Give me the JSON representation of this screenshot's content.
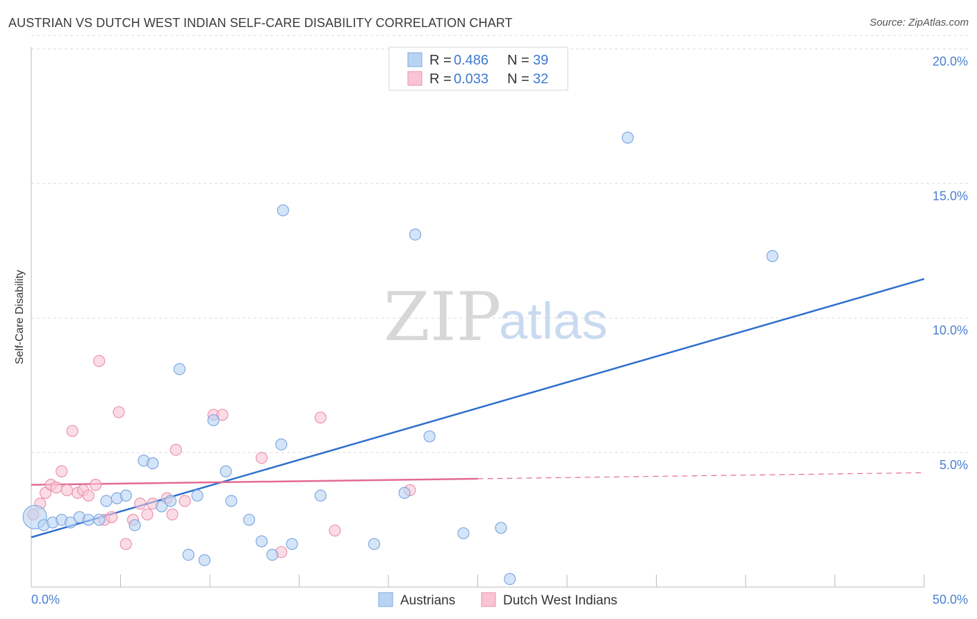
{
  "header": {
    "title": "AUSTRIAN VS DUTCH WEST INDIAN SELF-CARE DISABILITY CORRELATION CHART",
    "source": "Source: ZipAtlas.com"
  },
  "watermark": {
    "zip": "ZIP",
    "atlas": "atlas"
  },
  "colors": {
    "blue_fill": "#b9d3f3",
    "blue_stroke": "#7ea8e0",
    "blue_line": "#2c6fce",
    "pink_fill": "#f9c4d3",
    "pink_stroke": "#eb93ad",
    "pink_line": "#e36a94",
    "grid": "#dcdcdc",
    "tick_text": "#4a7fcf"
  },
  "legend": {
    "rows": [
      {
        "r_label": "R =",
        "r_value": "0.486",
        "n_label": "N =",
        "n_value": "39"
      },
      {
        "r_label": "R =",
        "r_value": "0.033",
        "n_label": "N =",
        "n_value": "32"
      }
    ]
  },
  "chart_data": {
    "type": "scatter",
    "title": "AUSTRIAN VS DUTCH WEST INDIAN SELF-CARE DISABILITY CORRELATION CHART",
    "xlabel": "",
    "ylabel": "Self-Care Disability",
    "xlim": [
      0,
      50
    ],
    "ylim": [
      0,
      20.5
    ],
    "x_tick_labels": [
      "0.0%",
      "50.0%"
    ],
    "y_ticks": [
      5,
      10,
      15,
      20
    ],
    "y_tick_labels": [
      "5.0%",
      "10.0%",
      "15.0%",
      "20.0%"
    ],
    "grid": true,
    "series": [
      {
        "name": "Austrians",
        "r": 0.486,
        "n": 39,
        "points": [
          {
            "x": 0.2,
            "y": 2.6,
            "big": true
          },
          {
            "x": 0.7,
            "y": 2.3
          },
          {
            "x": 1.2,
            "y": 2.4
          },
          {
            "x": 1.7,
            "y": 2.5
          },
          {
            "x": 2.2,
            "y": 2.4
          },
          {
            "x": 2.7,
            "y": 2.6
          },
          {
            "x": 3.2,
            "y": 2.5
          },
          {
            "x": 3.8,
            "y": 2.5
          },
          {
            "x": 4.2,
            "y": 3.2
          },
          {
            "x": 4.8,
            "y": 3.3
          },
          {
            "x": 5.3,
            "y": 3.4
          },
          {
            "x": 5.8,
            "y": 2.3
          },
          {
            "x": 6.3,
            "y": 4.7
          },
          {
            "x": 6.8,
            "y": 4.6
          },
          {
            "x": 7.3,
            "y": 3.0
          },
          {
            "x": 7.8,
            "y": 3.2
          },
          {
            "x": 8.3,
            "y": 8.1
          },
          {
            "x": 8.8,
            "y": 1.2
          },
          {
            "x": 9.3,
            "y": 3.4
          },
          {
            "x": 9.7,
            "y": 1.0
          },
          {
            "x": 10.2,
            "y": 6.2
          },
          {
            "x": 10.9,
            "y": 4.3
          },
          {
            "x": 11.2,
            "y": 3.2
          },
          {
            "x": 12.2,
            "y": 2.5
          },
          {
            "x": 12.9,
            "y": 1.7
          },
          {
            "x": 13.5,
            "y": 1.2
          },
          {
            "x": 14.0,
            "y": 5.3
          },
          {
            "x": 14.1,
            "y": 14.0
          },
          {
            "x": 14.6,
            "y": 1.6
          },
          {
            "x": 16.2,
            "y": 3.4
          },
          {
            "x": 19.2,
            "y": 1.6
          },
          {
            "x": 20.9,
            "y": 3.5
          },
          {
            "x": 21.5,
            "y": 13.1
          },
          {
            "x": 22.3,
            "y": 5.6
          },
          {
            "x": 24.2,
            "y": 2.0
          },
          {
            "x": 26.3,
            "y": 2.2
          },
          {
            "x": 26.8,
            "y": 0.3
          },
          {
            "x": 33.4,
            "y": 16.7
          },
          {
            "x": 41.5,
            "y": 12.3
          }
        ],
        "trend": {
          "x0": 0,
          "y0": 1.85,
          "x1": 50,
          "y1": 11.45,
          "dashed_from": null
        }
      },
      {
        "name": "Dutch West Indians",
        "r": 0.033,
        "n": 32,
        "points": [
          {
            "x": 0.1,
            "y": 2.7
          },
          {
            "x": 0.5,
            "y": 3.1
          },
          {
            "x": 0.8,
            "y": 3.5
          },
          {
            "x": 1.1,
            "y": 3.8
          },
          {
            "x": 1.4,
            "y": 3.7
          },
          {
            "x": 1.7,
            "y": 4.3
          },
          {
            "x": 2.0,
            "y": 3.6
          },
          {
            "x": 2.3,
            "y": 5.8
          },
          {
            "x": 2.6,
            "y": 3.5
          },
          {
            "x": 2.9,
            "y": 3.6
          },
          {
            "x": 3.2,
            "y": 3.4
          },
          {
            "x": 3.6,
            "y": 3.8
          },
          {
            "x": 3.8,
            "y": 8.4
          },
          {
            "x": 4.1,
            "y": 2.5
          },
          {
            "x": 4.5,
            "y": 2.6
          },
          {
            "x": 4.9,
            "y": 6.5
          },
          {
            "x": 5.3,
            "y": 1.6
          },
          {
            "x": 5.7,
            "y": 2.5
          },
          {
            "x": 6.1,
            "y": 3.1
          },
          {
            "x": 6.5,
            "y": 2.7
          },
          {
            "x": 6.8,
            "y": 3.1
          },
          {
            "x": 7.6,
            "y": 3.3
          },
          {
            "x": 7.9,
            "y": 2.7
          },
          {
            "x": 8.1,
            "y": 5.1
          },
          {
            "x": 8.6,
            "y": 3.2
          },
          {
            "x": 10.2,
            "y": 6.4
          },
          {
            "x": 10.7,
            "y": 6.4
          },
          {
            "x": 12.9,
            "y": 4.8
          },
          {
            "x": 14.0,
            "y": 1.3
          },
          {
            "x": 16.2,
            "y": 6.3
          },
          {
            "x": 17.0,
            "y": 2.1
          },
          {
            "x": 21.2,
            "y": 3.6
          }
        ],
        "trend": {
          "x0": 0,
          "y0": 3.8,
          "x1": 50,
          "y1": 4.25,
          "dashed_from": 25
        }
      }
    ]
  }
}
